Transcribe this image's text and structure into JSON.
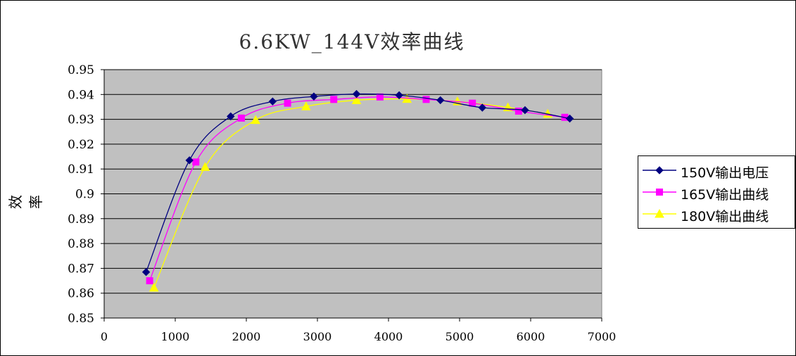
{
  "chart_data": {
    "type": "line",
    "title": "6.6KW_144V效率曲线",
    "xlabel": "",
    "ylabel": "效率",
    "xlim": [
      0,
      7000
    ],
    "ylim": [
      0.85,
      0.95
    ],
    "x_ticks": [
      "0",
      "1000",
      "2000",
      "3000",
      "4000",
      "5000",
      "6000",
      "7000"
    ],
    "y_ticks": [
      "0.95",
      "0.94",
      "0.93",
      "0.92",
      "0.91",
      "0.9",
      "0.89",
      "0.88",
      "0.87",
      "0.86",
      "0.85"
    ],
    "grid": true,
    "legend_position": "right",
    "plot_background": "#c0c0c0",
    "series": [
      {
        "name": "150V输出电压",
        "color": "#000080",
        "marker": "diamond",
        "x": [
          590,
          1200,
          1780,
          2370,
          2950,
          3550,
          4150,
          4730,
          5320,
          5920,
          6550
        ],
        "y": [
          0.8685,
          0.9135,
          0.9312,
          0.9372,
          0.9392,
          0.9402,
          0.9397,
          0.9377,
          0.9347,
          0.9337,
          0.9303
        ]
      },
      {
        "name": "165V输出曲线",
        "color": "#ff00ff",
        "marker": "square",
        "x": [
          640,
          1290,
          1930,
          2580,
          3230,
          3880,
          4530,
          5180,
          5830,
          6480
        ],
        "y": [
          0.865,
          0.9128,
          0.9305,
          0.9365,
          0.938,
          0.939,
          0.938,
          0.9365,
          0.9333,
          0.9308
        ]
      },
      {
        "name": "180V输出曲线",
        "color": "#ffff00",
        "marker": "triangle",
        "x": [
          700,
          1420,
          2130,
          2840,
          3550,
          4260,
          4970,
          5680,
          6240
        ],
        "y": [
          0.8622,
          0.9108,
          0.9297,
          0.9352,
          0.9377,
          0.9382,
          0.9372,
          0.9348,
          0.9322
        ]
      }
    ]
  }
}
